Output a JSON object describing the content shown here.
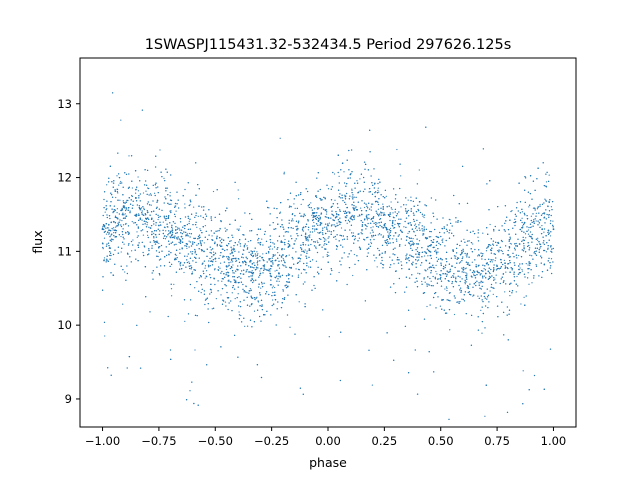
{
  "chart_data": {
    "type": "scatter",
    "title": "1SWASPJ115431.32-532434.5 Period 297626.125s",
    "xlabel": "phase",
    "ylabel": "flux",
    "xlim": [
      -1.1,
      1.1
    ],
    "ylim": [
      8.62,
      13.62
    ],
    "xticks": [
      -1.0,
      -0.75,
      -0.5,
      -0.25,
      0.0,
      0.25,
      0.5,
      0.75,
      1.0
    ],
    "xtick_labels": [
      "−1.00",
      "−0.75",
      "−0.50",
      "−0.25",
      "0.00",
      "0.25",
      "0.50",
      "0.75",
      "1.00"
    ],
    "yticks": [
      9,
      10,
      11,
      12,
      13
    ],
    "ytick_labels": [
      "9",
      "10",
      "11",
      "12",
      "13"
    ],
    "grid": false,
    "legend": "none",
    "color": "#1f77b4",
    "series": [
      {
        "points": [
          [
            -1.0,
            11.3
          ],
          [
            -0.95,
            11.4
          ],
          [
            -0.9,
            11.45
          ],
          [
            -0.85,
            11.5
          ],
          [
            -0.8,
            11.45
          ],
          [
            -0.75,
            11.35
          ],
          [
            -0.7,
            11.25
          ],
          [
            -0.65,
            11.2
          ],
          [
            -0.6,
            11.1
          ],
          [
            -0.55,
            11.0
          ],
          [
            -0.5,
            10.9
          ],
          [
            -0.45,
            10.8
          ],
          [
            -0.4,
            10.75
          ],
          [
            -0.35,
            10.72
          ],
          [
            -0.3,
            10.7
          ],
          [
            -0.25,
            10.8
          ],
          [
            -0.2,
            10.95
          ],
          [
            -0.15,
            11.1
          ],
          [
            -0.1,
            11.2
          ],
          [
            -0.05,
            11.3
          ],
          [
            0.0,
            11.35
          ],
          [
            0.05,
            11.4
          ],
          [
            0.1,
            11.45
          ],
          [
            0.15,
            11.5
          ],
          [
            0.2,
            11.45
          ],
          [
            0.25,
            11.35
          ],
          [
            0.3,
            11.25
          ],
          [
            0.35,
            11.2
          ],
          [
            0.4,
            11.1
          ],
          [
            0.45,
            11.0
          ],
          [
            0.5,
            10.9
          ],
          [
            0.55,
            10.8
          ],
          [
            0.6,
            10.75
          ],
          [
            0.65,
            10.72
          ],
          [
            0.7,
            10.7
          ],
          [
            0.75,
            10.8
          ],
          [
            0.8,
            10.95
          ],
          [
            0.85,
            11.1
          ],
          [
            0.9,
            11.2
          ],
          [
            0.95,
            11.3
          ],
          [
            1.0,
            11.3
          ]
        ]
      }
    ]
  }
}
